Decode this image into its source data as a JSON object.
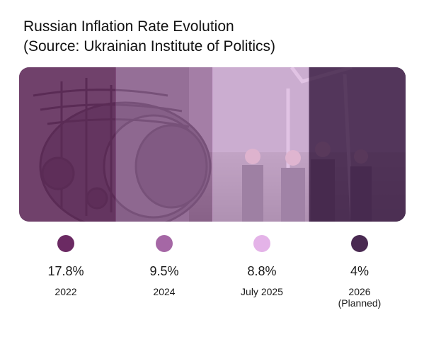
{
  "title": {
    "line1": "Russian Inflation Rate Evolution",
    "line2": "(Source: Ukrainian Institute of Politics)"
  },
  "chart_data": {
    "type": "bar",
    "title": "Russian Inflation Rate Evolution (Source: Ukrainian Institute of Politics)",
    "unit": "%",
    "categories": [
      "2022",
      "2024",
      "July 2025",
      "2026 (Planned)"
    ],
    "category_lines": [
      [
        "2022"
      ],
      [
        "2024"
      ],
      [
        "July 2025"
      ],
      [
        "2026",
        "(Planned)"
      ]
    ],
    "values": [
      17.8,
      9.5,
      8.8,
      4
    ],
    "value_labels": [
      "17.8%",
      "9.5%",
      "8.8%",
      "4%"
    ],
    "colors": [
      "#6b2a63",
      "#a567a5",
      "#e4b3e8",
      "#4a2a52"
    ]
  }
}
